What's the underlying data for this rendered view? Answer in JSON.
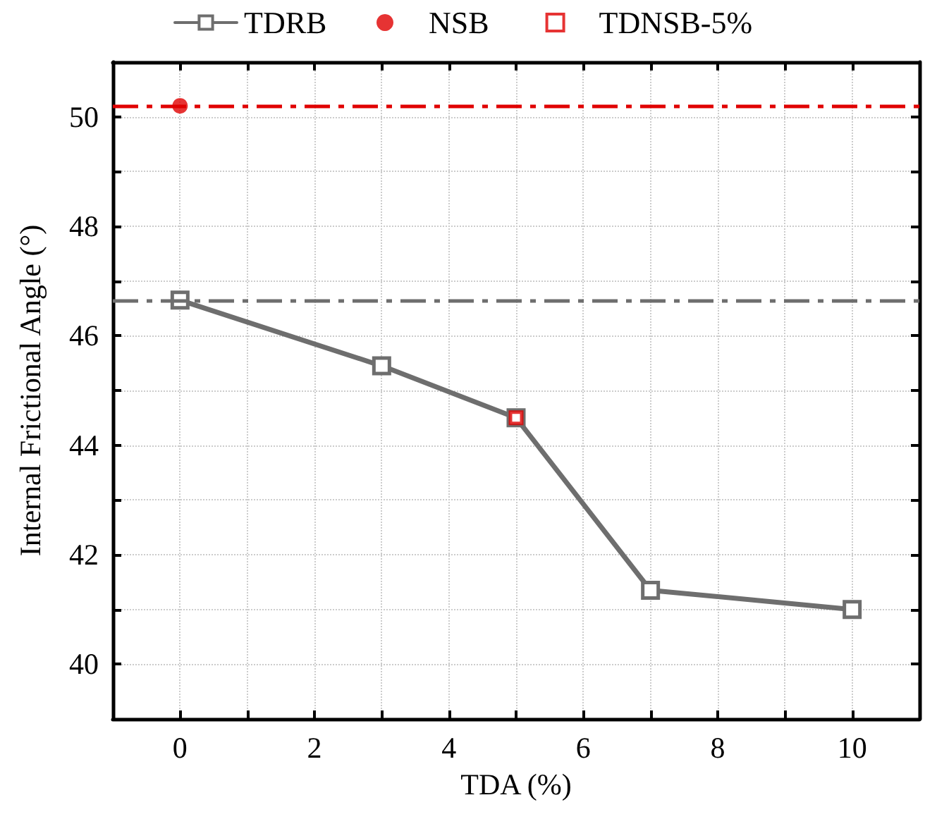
{
  "chart_data": {
    "type": "line",
    "xlabel": "TDA (%)",
    "ylabel": "Internal Frictional Angle (°)",
    "xlim": [
      -1,
      11
    ],
    "xticks": [
      0,
      {
        "value": 1,
        "label": null
      },
      2,
      {
        "value": 3,
        "label": null
      },
      4,
      {
        "value": 5,
        "label": null
      },
      6,
      {
        "value": 7,
        "label": null
      },
      8,
      {
        "value": 9,
        "label": null
      },
      10
    ],
    "ylim": [
      39,
      51
    ],
    "yticks": [
      40,
      {
        "value": 41,
        "label": null
      },
      42,
      {
        "value": 43,
        "label": null
      },
      44,
      {
        "value": 45,
        "label": null
      },
      46,
      {
        "value": 47,
        "label": null
      },
      48,
      {
        "value": 49,
        "label": null
      },
      50
    ],
    "grid": true,
    "legend": "top",
    "series": [
      {
        "name": "TDRB",
        "color": "#6e6e6e",
        "marker": "square",
        "x": [
          0,
          3,
          5,
          7,
          10
        ],
        "values": [
          46.65,
          45.45,
          44.5,
          41.35,
          41.0
        ]
      },
      {
        "name": "NSB",
        "type": "scatter",
        "color": "#e00000",
        "marker": "circle",
        "x": [
          0
        ],
        "values": [
          50.2
        ]
      },
      {
        "name": "TDNSB-5%",
        "type": "scatter",
        "color": "#e00000",
        "marker": "square",
        "x": [
          5
        ],
        "values": [
          44.5
        ]
      }
    ],
    "ref_lines": [
      {
        "axis": "y",
        "value": 50.2,
        "color": "#e00000",
        "line_style": "dashdot"
      },
      {
        "axis": "y",
        "value": 46.65,
        "color": "#6e6e6e",
        "line_style": "dashdot"
      }
    ]
  }
}
